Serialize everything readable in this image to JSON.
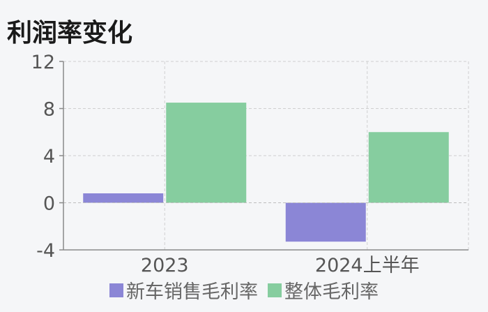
{
  "title": "利润率变化",
  "colors": {
    "series1": "#8b86d6",
    "series2": "#86cd9f",
    "axis": "#8a8a8a",
    "grid": "#cfcfcf",
    "text": "#555555"
  },
  "chart_data": {
    "type": "bar",
    "title": "利润率变化",
    "categories": [
      "2023",
      "2024上半年"
    ],
    "series": [
      {
        "name": "新车销售毛利率",
        "values": [
          0.8,
          -3.3
        ]
      },
      {
        "name": "整体毛利率",
        "values": [
          8.5,
          6.0
        ]
      }
    ],
    "ylim": [
      -4,
      12
    ],
    "yticks": [
      -4,
      0,
      4,
      8,
      12
    ],
    "xlabel": "",
    "ylabel": "",
    "grid": true,
    "legend": "bottom"
  }
}
